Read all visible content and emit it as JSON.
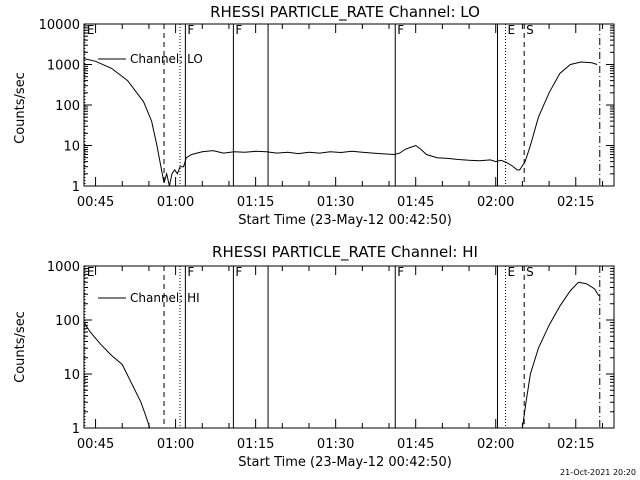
{
  "chart_data": [
    {
      "type": "line",
      "title": "RHESSI PARTICLE_RATE Channel: LO",
      "xlabel": "Start Time (23-May-12 00:42:50)",
      "ylabel": "Counts/sec",
      "yscale": "log",
      "ylim": [
        1,
        10000
      ],
      "xlim": [
        "00:42:50",
        "02:22:10"
      ],
      "x_ticks": [
        "00:45",
        "01:00",
        "01:15",
        "01:30",
        "01:45",
        "02:00",
        "02:15"
      ],
      "y_ticks": [
        "1",
        "10",
        "100",
        "1000",
        "10000"
      ],
      "legend": "Channel: LO",
      "legend_position": "top-left",
      "event_markers": [
        {
          "time": "00:43:00",
          "style": "dotted",
          "label": "E"
        },
        {
          "time": "00:57:50",
          "style": "dashed",
          "label": ""
        },
        {
          "time": "01:00:50",
          "style": "dotted",
          "label": ""
        },
        {
          "time": "01:01:50",
          "style": "solid",
          "label": "F"
        },
        {
          "time": "01:10:50",
          "style": "solid",
          "label": "F"
        },
        {
          "time": "01:17:20",
          "style": "solid",
          "label": ""
        },
        {
          "time": "01:41:10",
          "style": "solid",
          "label": "F"
        },
        {
          "time": "02:00:20",
          "style": "solid",
          "label": ""
        },
        {
          "time": "02:01:50",
          "style": "dotted",
          "label": "E"
        },
        {
          "time": "02:05:20",
          "style": "dashed",
          "label": "S"
        },
        {
          "time": "02:19:30",
          "style": "dashdot",
          "label": ""
        }
      ],
      "series": [
        {
          "name": "Channel: LO",
          "x": [
            "00:42:50",
            "00:45:00",
            "00:48:00",
            "00:51:00",
            "00:54:00",
            "00:55:30",
            "00:56:30",
            "00:57:15",
            "00:57:50",
            "00:58:20",
            "00:58:50",
            "00:59:20",
            "00:59:50",
            "01:00:20",
            "01:00:50",
            "01:01:30",
            "01:02:00",
            "01:03:00",
            "01:05:00",
            "01:07:00",
            "01:09:00",
            "01:11:00",
            "01:13:00",
            "01:15:00",
            "01:17:00",
            "01:19:00",
            "01:21:00",
            "01:23:00",
            "01:25:00",
            "01:27:00",
            "01:29:00",
            "01:31:00",
            "01:33:00",
            "01:35:00",
            "01:37:00",
            "01:39:00",
            "01:41:00",
            "01:42:00",
            "01:43:00",
            "01:44:00",
            "01:45:00",
            "01:46:00",
            "01:47:00",
            "01:49:00",
            "01:51:00",
            "01:53:00",
            "01:55:00",
            "01:57:00",
            "01:59:00",
            "02:00:00",
            "02:01:00",
            "02:02:00",
            "02:03:00",
            "02:04:00",
            "02:04:30",
            "02:05:30",
            "02:06:30",
            "02:08:00",
            "02:10:00",
            "02:12:00",
            "02:14:00",
            "02:16:00",
            "02:18:00",
            "02:19:00"
          ],
          "values": [
            1400,
            1200,
            800,
            400,
            120,
            40,
            10,
            3,
            1.2,
            2,
            1,
            2,
            2.5,
            2,
            3,
            3,
            5,
            6,
            7,
            7.5,
            6.5,
            7,
            6.8,
            7.2,
            7,
            6.5,
            6.8,
            6.3,
            6.8,
            6.5,
            7,
            6.7,
            7.2,
            6.8,
            6.5,
            6.2,
            6,
            6.5,
            8,
            9,
            10,
            8,
            6,
            5,
            4.8,
            4.5,
            4.3,
            4.2,
            4.4,
            4,
            4.3,
            3.8,
            3.2,
            2.5,
            2.5,
            4,
            10,
            50,
            200,
            600,
            1000,
            1150,
            1100,
            1000
          ]
        }
      ]
    },
    {
      "type": "line",
      "title": "RHESSI PARTICLE_RATE Channel: HI",
      "xlabel": "Start Time (23-May-12 00:42:50)",
      "ylabel": "Counts/sec",
      "yscale": "log",
      "ylim": [
        1,
        1000
      ],
      "xlim": [
        "00:42:50",
        "02:22:10"
      ],
      "x_ticks": [
        "00:45",
        "01:00",
        "01:15",
        "01:30",
        "01:45",
        "02:00",
        "02:15"
      ],
      "y_ticks": [
        "1",
        "10",
        "100",
        "1000"
      ],
      "legend": "Channel: HI",
      "legend_position": "top-left",
      "event_markers": [
        {
          "time": "00:43:00",
          "style": "dotted",
          "label": "E"
        },
        {
          "time": "00:57:50",
          "style": "dashed",
          "label": ""
        },
        {
          "time": "01:00:50",
          "style": "dotted",
          "label": ""
        },
        {
          "time": "01:01:50",
          "style": "solid",
          "label": "F"
        },
        {
          "time": "01:10:50",
          "style": "solid",
          "label": "F"
        },
        {
          "time": "01:17:20",
          "style": "solid",
          "label": ""
        },
        {
          "time": "01:41:10",
          "style": "solid",
          "label": "F"
        },
        {
          "time": "02:00:20",
          "style": "solid",
          "label": ""
        },
        {
          "time": "02:01:50",
          "style": "dotted",
          "label": "E"
        },
        {
          "time": "02:05:20",
          "style": "dashed",
          "label": "S"
        },
        {
          "time": "02:19:30",
          "style": "dashdot",
          "label": ""
        }
      ],
      "series": [
        {
          "name": "Channel: HI",
          "x": [
            "00:42:50",
            "00:44:00",
            "00:46:00",
            "00:48:00",
            "00:50:00",
            "00:52:00",
            "00:53:30",
            "00:54:30",
            "00:55:10",
            "02:05:00",
            "02:05:40",
            "02:06:30",
            "02:08:00",
            "02:10:00",
            "02:12:00",
            "02:14:00",
            "02:15:30",
            "02:17:00",
            "02:18:30",
            "02:19:20"
          ],
          "values": [
            90,
            60,
            35,
            22,
            15,
            6,
            3,
            1.6,
            1,
            1,
            3,
            10,
            30,
            80,
            180,
            350,
            500,
            470,
            380,
            280
          ]
        }
      ]
    }
  ],
  "footer": {
    "date_stamp": "21-Oct-2021 20:20"
  }
}
